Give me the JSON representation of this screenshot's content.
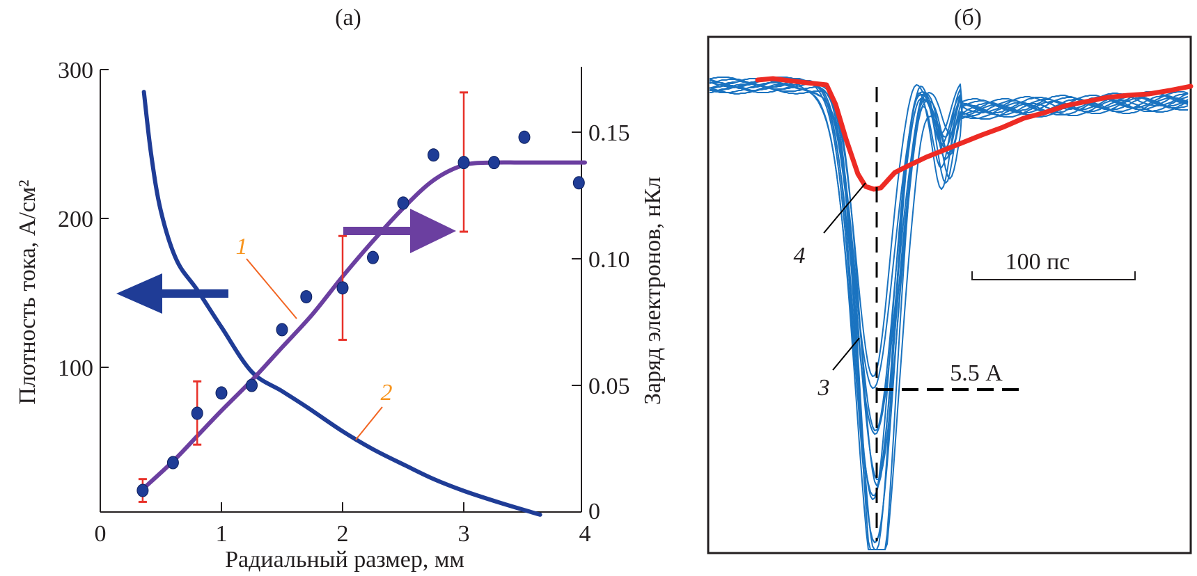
{
  "figure": {
    "panels": [
      "(а)",
      "(б)"
    ]
  },
  "colors": {
    "axis": "#231f20",
    "points": "#1f3c96",
    "fit_curve": "#6b3fa0",
    "density_curve": "#1f3c96",
    "error_bars": "#e8322a",
    "curve_labels": "#f7941d",
    "leader_lines": "#f26522",
    "traces": "#1a73c0",
    "mean_trace": "#ed2b24"
  },
  "chart_data": [
    {
      "type": "scatter",
      "panel": "(а)",
      "title": "(а)",
      "xlabel": "Радиальный размер, мм",
      "ylabel_left": "Плотность тока, А/см²",
      "ylabel_right": "Заряд электронов, нКл",
      "xlim": [
        0,
        4
      ],
      "ylim_left": [
        0,
        300
      ],
      "ylim_right": [
        0,
        0.17
      ],
      "x_ticks": [
        "0",
        "1",
        "2",
        "3",
        "4"
      ],
      "x_tick_values": [
        0,
        1,
        2,
        3,
        4
      ],
      "y_left_ticks": [
        "100",
        "200",
        "300"
      ],
      "y_left_tick_values": [
        100,
        200,
        300
      ],
      "y_right_ticks": [
        "0",
        "0.05",
        "0.10",
        "0.15"
      ],
      "y_right_tick_values": [
        0,
        0.05,
        0.1,
        0.15
      ],
      "grid": false,
      "series": [
        {
          "name": "measured charge (points)",
          "axis": "right",
          "x": [
            0.35,
            0.6,
            0.8,
            1.0,
            1.25,
            1.5,
            1.7,
            2.0,
            2.25,
            2.5,
            2.75,
            3.0,
            3.25,
            3.5,
            3.95
          ],
          "y": [
            0.0085,
            0.0195,
            0.039,
            0.047,
            0.05,
            0.072,
            0.085,
            0.0885,
            0.1005,
            0.122,
            0.141,
            0.138,
            0.138,
            0.148,
            0.13
          ]
        },
        {
          "name": "1",
          "label": "1",
          "axis": "right",
          "kind": "line",
          "x": [
            0.35,
            0.6,
            0.8,
            1.0,
            1.25,
            1.5,
            1.75,
            2.0,
            2.25,
            2.5,
            2.75,
            3.0,
            3.25,
            3.5,
            4.0
          ],
          "y": [
            0.009,
            0.02,
            0.03,
            0.04,
            0.052,
            0.065,
            0.078,
            0.093,
            0.107,
            0.12,
            0.131,
            0.137,
            0.138,
            0.138,
            0.138
          ]
        },
        {
          "name": "2",
          "label": "2",
          "axis": "left",
          "kind": "line",
          "x": [
            0.36,
            0.42,
            0.5,
            0.63,
            0.8,
            1.0,
            1.25,
            1.5,
            1.71,
            2.0,
            2.25,
            2.52,
            2.75,
            3.0,
            3.3,
            3.63
          ],
          "y": [
            285,
            243,
            205,
            172,
            152,
            127,
            97,
            84,
            73,
            57,
            45,
            34,
            25,
            17,
            9,
            1
          ]
        }
      ],
      "error_bars": [
        {
          "x": 0.35,
          "low": 0.004,
          "high": 0.013
        },
        {
          "x": 0.8,
          "low": 0.0266,
          "high": 0.0516
        },
        {
          "x": 2.0,
          "low": 0.068,
          "high": 0.109
        },
        {
          "x": 3.0,
          "low": 0.1107,
          "high": 0.1657
        }
      ],
      "annotations": [
        {
          "text": "1",
          "target": "series 1"
        },
        {
          "text": "2",
          "target": "series 2"
        },
        {
          "text": "←",
          "meaning": "curve 2 uses left axis"
        },
        {
          "text": "→",
          "meaning": "curve 1 and points use right axis"
        }
      ]
    },
    {
      "type": "line",
      "panel": "(б)",
      "title": "(б)",
      "description": "Oscilloscope current pulses (multiple traces) and averaged trace",
      "grid": false,
      "scale_bar": "100 пс",
      "peak_marker": "5.5 А",
      "series": [
        {
          "name": "3",
          "label": "3",
          "kind": "individual pulses",
          "count": 12,
          "peak_current_A": 5.5
        },
        {
          "name": "4",
          "label": "4",
          "kind": "average pulse"
        }
      ]
    }
  ]
}
